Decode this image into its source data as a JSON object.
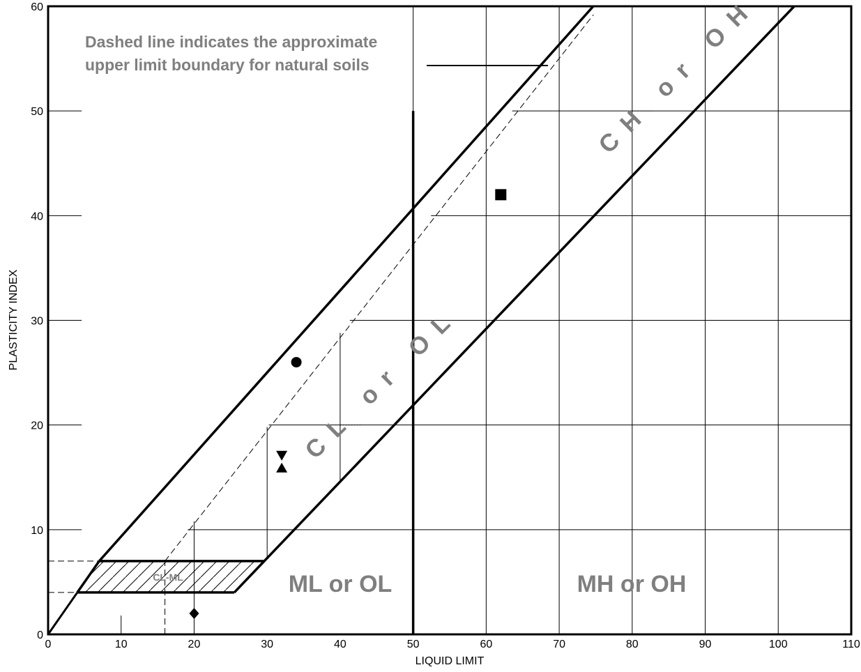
{
  "chart_data": {
    "type": "scatter",
    "title": "",
    "xlabel": "LIQUID LIMIT",
    "ylabel": "PLASTICITY INDEX",
    "xlim": [
      0,
      110
    ],
    "ylim": [
      0,
      60
    ],
    "x_ticks": [
      "0",
      "10",
      "20",
      "30",
      "40",
      "50",
      "60",
      "70",
      "80",
      "90",
      "100",
      "110"
    ],
    "y_ticks": [
      "0",
      "10",
      "20",
      "30",
      "40",
      "50",
      "60"
    ],
    "grid": true,
    "legend": "none",
    "annotations": {
      "note_line1": "Dashed line indicates the approximate",
      "note_line2": "upper limit boundary for natural soils",
      "zone_ml_ol": "ML or OL",
      "zone_mh_oh": "MH or OH",
      "zone_cl_ol": "CL or OL",
      "zone_ch_oh": "CH or OH",
      "zone_cl_ml": "CL-ML"
    },
    "series": [
      {
        "marker": "circle",
        "points": [
          [
            34,
            26
          ]
        ]
      },
      {
        "marker": "square",
        "points": [
          [
            62,
            42
          ]
        ]
      },
      {
        "marker": "hourglass",
        "points": [
          [
            32,
            17
          ],
          [
            32,
            16
          ]
        ]
      },
      {
        "marker": "diamond",
        "points": [
          [
            20,
            2
          ]
        ]
      }
    ],
    "reference_lines": {
      "a_line": "PI = 0.73 (LL - 20)",
      "u_line": "PI = 0.9 (LL - 8)",
      "liquid_limit_boundary": 50
    }
  }
}
